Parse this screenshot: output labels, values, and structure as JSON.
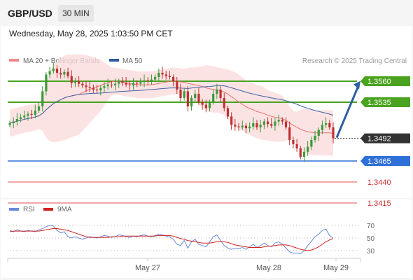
{
  "header": {
    "symbol": "GBP/USD",
    "timeframe": "30 MIN",
    "datetime": "Wednesday, May 28, 2025 1:03:50 PM CET"
  },
  "legend": [
    {
      "label": "MA 20 + Bollinger Bands",
      "color": "#f08a8a"
    },
    {
      "label": "MA 50",
      "color": "#2c5aa0"
    }
  ],
  "credit": "Research © 2025 Trading Central",
  "colors": {
    "green": "#4aa31e",
    "blue": "#2e6fd8",
    "red": "#e05050",
    "dark": "#333333",
    "up": "#3a9a3a",
    "down": "#c03030"
  },
  "chart_data": [
    {
      "type": "candlestick",
      "series": [
        {
          "name": "MA 20 + Bollinger Bands"
        },
        {
          "name": "MA 50"
        }
      ],
      "ylim": [
        1.34,
        1.36
      ],
      "x_ticks": [
        "May 27",
        "May 28",
        "May 29"
      ],
      "close": [
        1.351,
        1.3512,
        1.3515,
        1.3517,
        1.3519,
        1.3521,
        1.352,
        1.3525,
        1.353,
        1.3548,
        1.3568,
        1.3572,
        1.3575,
        1.357,
        1.3568,
        1.3571,
        1.3566,
        1.3558,
        1.356,
        1.3557,
        1.3555,
        1.3553,
        1.3552,
        1.355,
        1.3549,
        1.3552,
        1.3554,
        1.3556,
        1.3555,
        1.3557,
        1.356,
        1.3558,
        1.3556,
        1.3555,
        1.3558,
        1.3557,
        1.3559,
        1.3561,
        1.356,
        1.3562,
        1.3565,
        1.357,
        1.3568,
        1.3566,
        1.3565,
        1.356,
        1.355,
        1.354,
        1.3548,
        1.353,
        1.354,
        1.3545,
        1.3535,
        1.3532,
        1.3528,
        1.3535,
        1.3545,
        1.355,
        1.354,
        1.3528,
        1.3518,
        1.3508,
        1.3506,
        1.3505,
        1.3507,
        1.3504,
        1.3506,
        1.351,
        1.3505,
        1.3508,
        1.3512,
        1.3509,
        1.3507,
        1.3512,
        1.3514,
        1.3512,
        1.3505,
        1.349,
        1.3485,
        1.348,
        1.347,
        1.3476,
        1.3482,
        1.349,
        1.3495,
        1.3502,
        1.3508,
        1.351,
        1.3505,
        1.3492
      ],
      "trade_levels": [
        {
          "label": "1.3560",
          "value": 1.356,
          "role": "resistance"
        },
        {
          "label": "1.3535",
          "value": 1.3535,
          "role": "resistance"
        },
        {
          "label": "1.3492",
          "value": 1.3492,
          "role": "last price"
        },
        {
          "label": "1.3465",
          "value": 1.3465,
          "role": "pivot"
        },
        {
          "label": "1.3440",
          "value": 1.344,
          "role": "support"
        },
        {
          "label": "1.3415",
          "value": 1.3415,
          "role": "support"
        }
      ],
      "annotation": "blue up arrow toward 1.3560"
    },
    {
      "type": "line",
      "series": [
        {
          "name": "RSI",
          "color": "#6a8ad8"
        },
        {
          "name": "9MA",
          "color": "#d02020"
        }
      ],
      "ylim": [
        20,
        80
      ],
      "y_ticks": [
        70,
        50,
        30
      ],
      "rsi": [
        62,
        60,
        63,
        61,
        60,
        62,
        61,
        60,
        63,
        65,
        68,
        70,
        69,
        62,
        58,
        60,
        52,
        50,
        52,
        50,
        48,
        50,
        52,
        51,
        50,
        52,
        54,
        53,
        51,
        52,
        55,
        54,
        52,
        51,
        53,
        52,
        54,
        55,
        53,
        52,
        54,
        56,
        55,
        53,
        52,
        48,
        40,
        38,
        46,
        34,
        44,
        48,
        40,
        38,
        36,
        44,
        52,
        55,
        46,
        38,
        34,
        32,
        34,
        33,
        35,
        32,
        36,
        40,
        35,
        38,
        42,
        38,
        36,
        42,
        44,
        40,
        34,
        28,
        26,
        26,
        25,
        30,
        38,
        45,
        52,
        56,
        62,
        64,
        54,
        50
      ],
      "ma9": [
        60,
        61,
        61,
        61,
        61,
        61,
        61,
        61,
        61,
        62,
        63,
        64,
        65,
        65,
        64,
        63,
        62,
        60,
        58,
        56,
        54,
        52,
        51,
        51,
        51,
        51,
        51,
        51,
        52,
        52,
        52,
        53,
        53,
        53,
        53,
        53,
        53,
        53,
        53,
        53,
        53,
        54,
        54,
        54,
        54,
        53,
        51,
        49,
        48,
        46,
        45,
        44,
        43,
        42,
        42,
        42,
        43,
        44,
        44,
        44,
        43,
        41,
        39,
        38,
        37,
        36,
        35,
        35,
        35,
        35,
        36,
        37,
        37,
        38,
        39,
        39,
        39,
        38,
        36,
        34,
        32,
        31,
        30,
        31,
        33,
        36,
        40,
        44,
        47,
        49
      ]
    }
  ]
}
